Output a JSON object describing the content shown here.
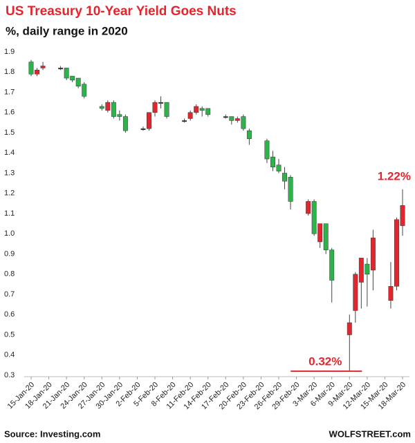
{
  "chart_data": {
    "type": "candlestick",
    "title": "US Treasury 10-Year Yield Goes Nuts",
    "subtitle": "%, daily range in 2020",
    "source": "Source: Investing.com",
    "brand": "WOLFSTREET.com",
    "up_color": "#e3262e",
    "down_color": "#2db34a",
    "flat_color": "#333333",
    "x": [
      "15-Jan-20",
      "16-Jan-20",
      "17-Jan-20",
      "20-Jan-20",
      "21-Jan-20",
      "22-Jan-20",
      "23-Jan-20",
      "24-Jan-20",
      "27-Jan-20",
      "28-Jan-20",
      "29-Jan-20",
      "30-Jan-20",
      "31-Jan-20",
      "3-Feb-20",
      "4-Feb-20",
      "5-Feb-20",
      "6-Feb-20",
      "7-Feb-20",
      "10-Feb-20",
      "11-Feb-20",
      "12-Feb-20",
      "13-Feb-20",
      "14-Feb-20",
      "17-Feb-20",
      "18-Feb-20",
      "19-Feb-20",
      "20-Feb-20",
      "21-Feb-20",
      "24-Feb-20",
      "25-Feb-20",
      "26-Feb-20",
      "27-Feb-20",
      "28-Feb-20",
      "2-Mar-20",
      "3-Mar-20",
      "4-Mar-20",
      "5-Mar-20",
      "6-Mar-20",
      "9-Mar-20",
      "10-Mar-20",
      "11-Mar-20",
      "12-Mar-20",
      "13-Mar-20",
      "16-Mar-20",
      "17-Mar-20",
      "18-Mar-20"
    ],
    "open": [
      1.85,
      1.79,
      1.82,
      1.82,
      1.82,
      1.78,
      1.77,
      1.74,
      1.63,
      1.61,
      1.65,
      1.59,
      1.58,
      1.52,
      1.52,
      1.6,
      1.65,
      1.65,
      1.56,
      1.57,
      1.6,
      1.62,
      1.62,
      1.58,
      1.58,
      1.56,
      1.58,
      1.51,
      1.46,
      1.38,
      1.34,
      1.3,
      1.28,
      1.1,
      1.16,
      0.96,
      1.05,
      0.92,
      0.5,
      0.62,
      0.76,
      0.85,
      0.82,
      0.67,
      0.74,
      1.04
    ],
    "high": [
      1.86,
      1.82,
      1.85,
      1.83,
      1.82,
      1.78,
      1.77,
      1.75,
      1.64,
      1.66,
      1.66,
      1.61,
      1.59,
      1.53,
      1.6,
      1.66,
      1.68,
      1.65,
      1.57,
      1.61,
      1.64,
      1.63,
      1.62,
      1.59,
      1.58,
      1.58,
      1.59,
      1.52,
      1.47,
      1.41,
      1.37,
      1.33,
      1.29,
      1.17,
      1.17,
      1.05,
      1.05,
      0.93,
      0.6,
      0.81,
      0.88,
      0.88,
      1.02,
      0.86,
      1.08,
      1.22
    ],
    "low": [
      1.78,
      1.78,
      1.81,
      1.81,
      1.76,
      1.75,
      1.72,
      1.67,
      1.61,
      1.6,
      1.57,
      1.56,
      1.5,
      1.51,
      1.51,
      1.58,
      1.62,
      1.57,
      1.55,
      1.56,
      1.59,
      1.58,
      1.58,
      1.57,
      1.54,
      1.55,
      1.51,
      1.44,
      1.35,
      1.31,
      1.3,
      1.22,
      1.12,
      1.09,
      0.99,
      0.93,
      0.9,
      0.66,
      0.32,
      0.56,
      0.63,
      0.64,
      0.72,
      0.63,
      0.72,
      0.99
    ],
    "close": [
      1.79,
      1.81,
      1.83,
      1.82,
      1.77,
      1.76,
      1.73,
      1.68,
      1.62,
      1.65,
      1.58,
      1.58,
      1.51,
      1.52,
      1.6,
      1.65,
      1.65,
      1.58,
      1.56,
      1.6,
      1.63,
      1.61,
      1.59,
      1.58,
      1.56,
      1.57,
      1.52,
      1.47,
      1.37,
      1.33,
      1.31,
      1.26,
      1.16,
      1.16,
      1.0,
      1.05,
      0.92,
      0.77,
      0.56,
      0.8,
      0.88,
      0.8,
      0.98,
      0.74,
      1.07,
      1.14
    ],
    "xticks": [
      "15-Jan-20",
      "18-Jan-20",
      "21-Jan-20",
      "24-Jan-20",
      "27-Jan-20",
      "30-Jan-20",
      "2-Feb-20",
      "5-Feb-20",
      "8-Feb-20",
      "11-Feb-20",
      "14-Feb-20",
      "17-Feb-20",
      "20-Feb-20",
      "23-Feb-20",
      "26-Feb-20",
      "29-Feb-20",
      "3-Mar-20",
      "6-Mar-20",
      "9-Mar-20",
      "12-Mar-20",
      "15-Mar-20",
      "18-Mar-20"
    ],
    "ylim": [
      0.3,
      1.9
    ],
    "yticks": [
      0.3,
      0.4,
      0.5,
      0.6,
      0.7,
      0.8,
      0.9,
      {
        "value": 1,
        "label": "1.0"
      },
      1.1,
      1.2,
      1.3,
      1.4,
      1.5,
      1.6,
      1.7,
      1.8,
      1.9
    ],
    "annotations": [
      {
        "text": "1.22%",
        "x": "18-Mar-20",
        "value": 1.22,
        "color": "#e3262e"
      },
      {
        "text": "0.32%",
        "x": "9-Mar-20",
        "value": 0.32,
        "color": "#e3262e",
        "rule": true
      }
    ]
  }
}
